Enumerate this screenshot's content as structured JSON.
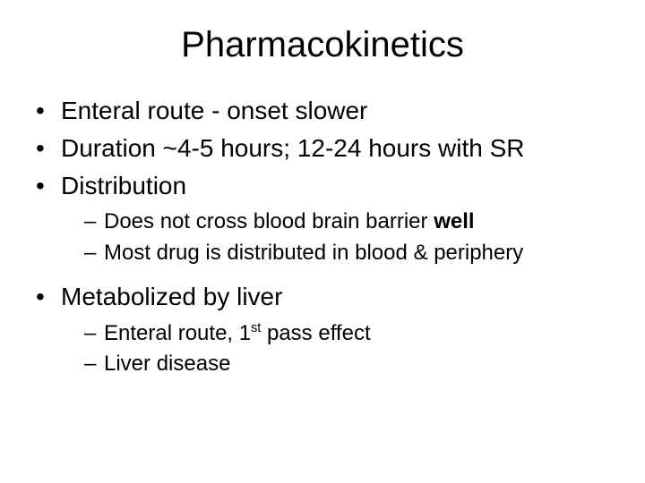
{
  "title": "Pharmacokinetics",
  "bullets": {
    "b1": "Enteral route - onset slower",
    "b2": "Duration ~4-5 hours; 12-24 hours with SR",
    "b3": "Distribution",
    "b3_sub1_pre": "Does not cross blood brain barrier ",
    "b3_sub1_bold": "well",
    "b3_sub2": "Most drug is distributed in blood & periphery",
    "b4": "Metabolized  by liver",
    "b4_sub1_pre": "Enteral route, 1",
    "b4_sub1_sup": "st",
    "b4_sub1_post": " pass effect",
    "b4_sub2": "Liver disease"
  },
  "style": {
    "background_color": "#ffffff",
    "text_color": "#000000",
    "title_fontsize": 40,
    "level1_fontsize": 28,
    "level2_fontsize": 24,
    "font_family": "Arial"
  }
}
